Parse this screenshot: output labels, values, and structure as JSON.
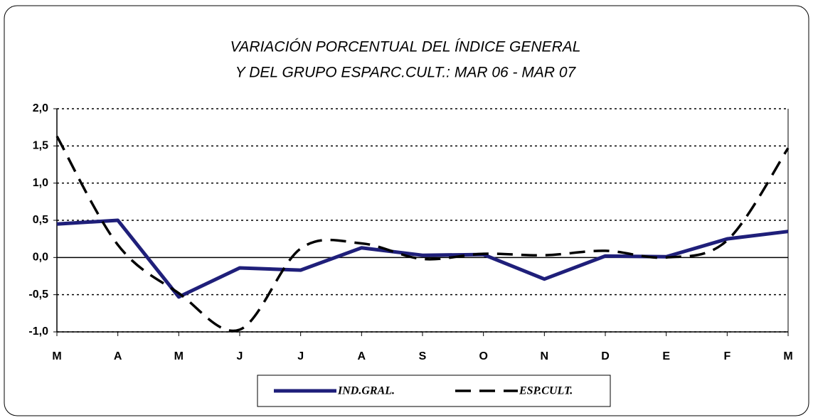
{
  "chart_data": {
    "type": "line",
    "title": [
      "VARIACIÓN PORCENTUAL DEL ÍNDICE GENERAL",
      "Y DEL GRUPO ESPARC.CULT.: MAR 06 - MAR 07"
    ],
    "categories": [
      "M",
      "A",
      "M",
      "J",
      "J",
      "A",
      "S",
      "O",
      "N",
      "D",
      "E",
      "F",
      "M"
    ],
    "series": [
      {
        "name": "IND.GRAL.",
        "color": "#1f1f7a",
        "dashed": false,
        "smooth": false,
        "values": [
          0.45,
          0.5,
          -0.53,
          -0.14,
          -0.17,
          0.13,
          0.03,
          0.04,
          -0.29,
          0.02,
          0.01,
          0.25,
          0.35
        ]
      },
      {
        "name": "ESP.CULT.",
        "color": "#000000",
        "dashed": true,
        "smooth": true,
        "values": [
          1.63,
          0.17,
          -0.48,
          -0.97,
          0.12,
          0.19,
          -0.02,
          0.05,
          0.03,
          0.09,
          0.0,
          0.23,
          1.47
        ]
      }
    ],
    "ylim": [
      -1,
      2
    ],
    "yticks": [
      {
        "value": -1,
        "label": "-1,0"
      },
      {
        "value": -0.5,
        "label": "-0,5"
      },
      {
        "value": 0,
        "label": "0,0"
      },
      {
        "value": 0.5,
        "label": "0,5"
      },
      {
        "value": 1,
        "label": "1,0"
      },
      {
        "value": 1.5,
        "label": "1,5"
      },
      {
        "value": 2,
        "label": "2,0"
      }
    ],
    "grid": true,
    "legend": "bottom"
  }
}
